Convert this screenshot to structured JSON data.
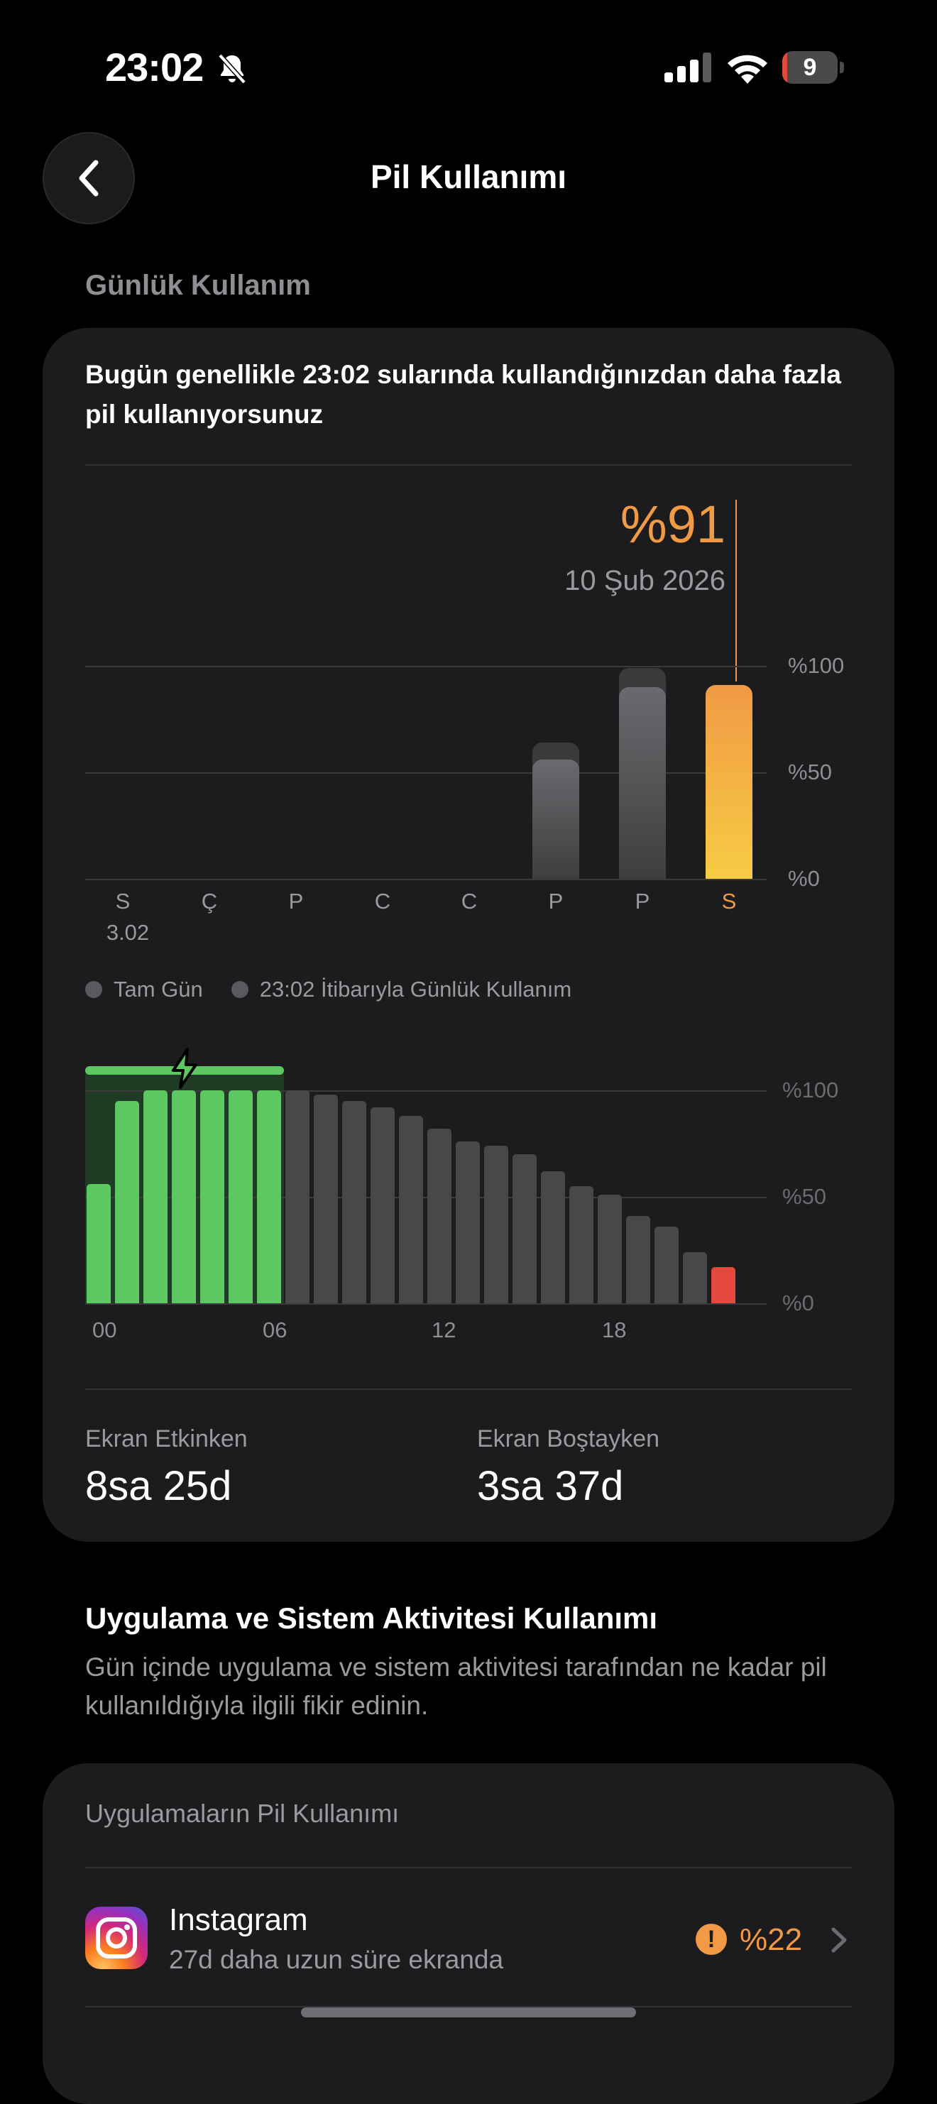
{
  "status_bar": {
    "time": "23:02",
    "battery_level": "9",
    "icons": [
      "bell-slash-icon",
      "cellular-signal-icon",
      "wifi-icon",
      "battery-icon"
    ]
  },
  "header": {
    "title": "Pil Kullanımı",
    "back_icon": "chevron-left-icon"
  },
  "daily": {
    "section_label": "Günlük Kullanım",
    "headline": "Bugün genellikle 23:02 sularında kullandığınızdan daha fazla pil kullanıyorsunuz",
    "selected_value": "%91",
    "selected_date": "10 Şub 2026"
  },
  "chart_data": [
    {
      "type": "bar",
      "categories": [
        "S",
        "Ç",
        "P",
        "C",
        "C",
        "P",
        "P",
        "S"
      ],
      "date_sublabel": "3.02",
      "series": [
        {
          "name": "Tam Gün",
          "values": [
            0,
            0,
            0,
            0,
            0,
            64,
            99,
            91
          ]
        },
        {
          "name": "23:02 İtibarıyla Günlük Kullanım",
          "values": [
            0,
            0,
            0,
            0,
            0,
            56,
            90,
            91
          ]
        }
      ],
      "y_ticks": [
        "%100",
        "%50",
        "%0"
      ],
      "ylim": [
        0,
        100
      ],
      "highlight_category_index": 7,
      "highlight_color": "#f19a45"
    },
    {
      "type": "bar",
      "x_ticks": [
        "00",
        "06",
        "12",
        "18"
      ],
      "y_ticks": [
        "%100",
        "%50",
        "%0"
      ],
      "ylim": [
        0,
        100
      ],
      "values": [
        56,
        95,
        100,
        100,
        100,
        100,
        100,
        100,
        98,
        95,
        92,
        88,
        82,
        76,
        74,
        70,
        62,
        55,
        51,
        41,
        36,
        24,
        17
      ],
      "charging_hours": [
        0,
        1,
        2,
        3,
        4,
        5,
        6
      ],
      "low_battery_hours": [
        22
      ],
      "colors": {
        "charging": "#5dc761",
        "normal": "#48484a",
        "low": "#e5483c"
      }
    }
  ],
  "legend": {
    "full_day": "Tam Gün",
    "until_now": "23:02 İtibarıyla Günlük Kullanım"
  },
  "stats": {
    "screen_on_label": "Ekran Etkinken",
    "screen_on_value": "8sa 25d",
    "screen_off_label": "Ekran Boştayken",
    "screen_off_value": "3sa 37d"
  },
  "activity": {
    "title": "Uygulama ve Sistem Aktivitesi Kullanımı",
    "subtitle": "Gün içinde uygulama ve sistem aktivitesi tarafından ne kadar pil kullanıldığıyla ilgili fikir edinin."
  },
  "apps": {
    "section_title": "Uygulamaların Pil Kullanımı",
    "items": [
      {
        "name": "Instagram",
        "detail": "27d daha uzun süre ekranda",
        "percent": "%22",
        "icon": "instagram-icon",
        "warning_icon": "exclamation-circle-icon"
      }
    ]
  }
}
